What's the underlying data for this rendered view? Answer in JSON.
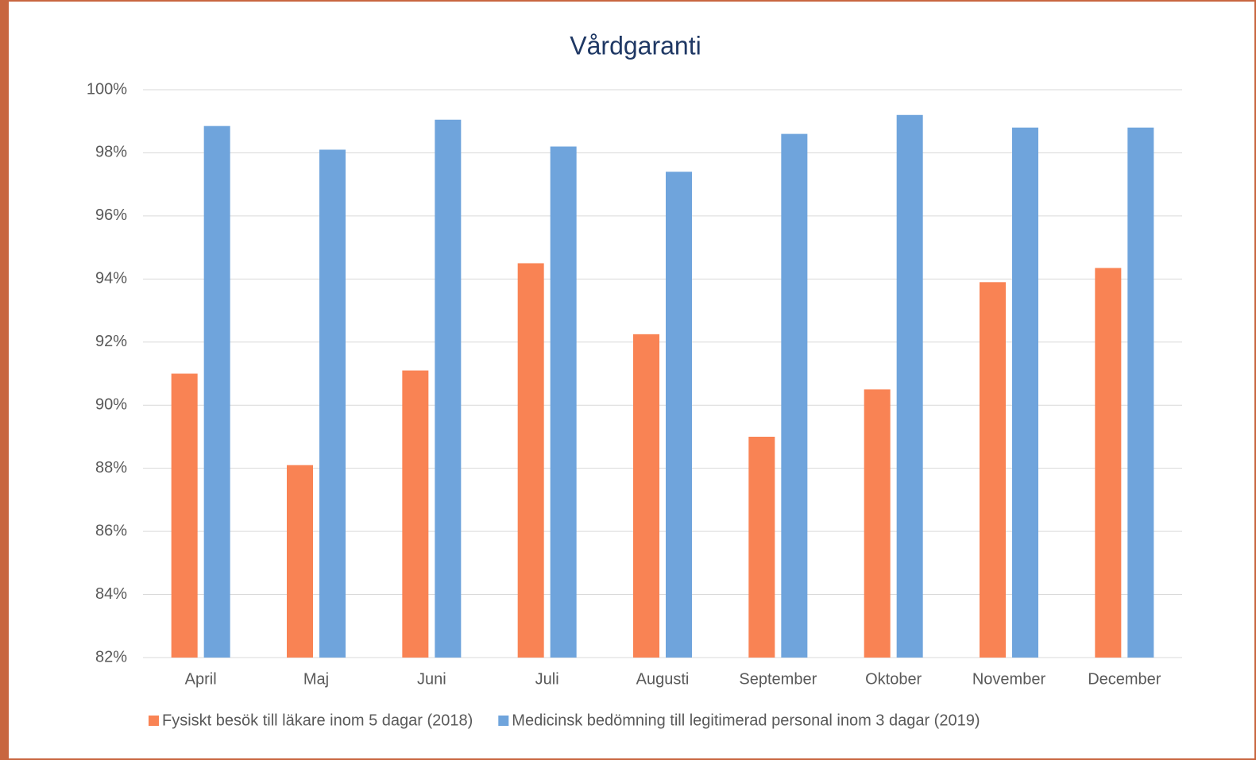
{
  "chart_data": {
    "type": "bar",
    "title": "Vårdgaranti",
    "categories": [
      "April",
      "Maj",
      "Juni",
      "Juli",
      "Augusti",
      "September",
      "Oktober",
      "November",
      "December"
    ],
    "series": [
      {
        "name": "Fysiskt besök till läkare inom 5 dagar (2018)",
        "color": "#f98354",
        "values": [
          91.0,
          88.1,
          91.1,
          94.5,
          92.25,
          89.0,
          90.5,
          93.9,
          94.35
        ]
      },
      {
        "name": "Medicinsk bedömning till legitimerad personal inom 3 dagar (2019)",
        "color": "#6fa4dc",
        "values": [
          98.85,
          98.1,
          99.05,
          98.2,
          97.4,
          98.6,
          99.2,
          98.8,
          98.8
        ]
      }
    ],
    "ylim": [
      82,
      100
    ],
    "yticks": [
      {
        "value": 82,
        "label": "82%"
      },
      {
        "value": 84,
        "label": "84%"
      },
      {
        "value": 86,
        "label": "86%"
      },
      {
        "value": 88,
        "label": "88%"
      },
      {
        "value": 90,
        "label": "90%"
      },
      {
        "value": 92,
        "label": "92%"
      },
      {
        "value": 94,
        "label": "94%"
      },
      {
        "value": 96,
        "label": "96%"
      },
      {
        "value": 98,
        "label": "98%"
      },
      {
        "value": 100,
        "label": "100%"
      }
    ],
    "grid": true,
    "legend": "bottom"
  }
}
